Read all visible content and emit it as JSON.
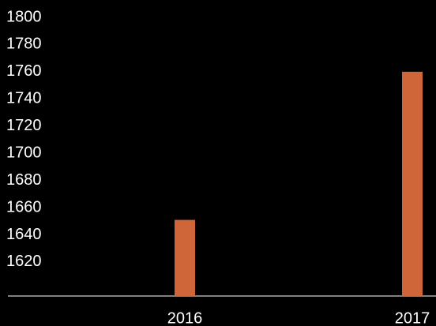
{
  "chart_data": {
    "type": "bar",
    "categories": [
      "2016",
      "2017"
    ],
    "values": [
      1651,
      1760
    ],
    "color": "#cf663a",
    "ylim": [
      1595,
      1800
    ],
    "yticks": [
      1620,
      1640,
      1660,
      1680,
      1700,
      1720,
      1740,
      1760,
      1780,
      1800
    ],
    "grid": false
  }
}
